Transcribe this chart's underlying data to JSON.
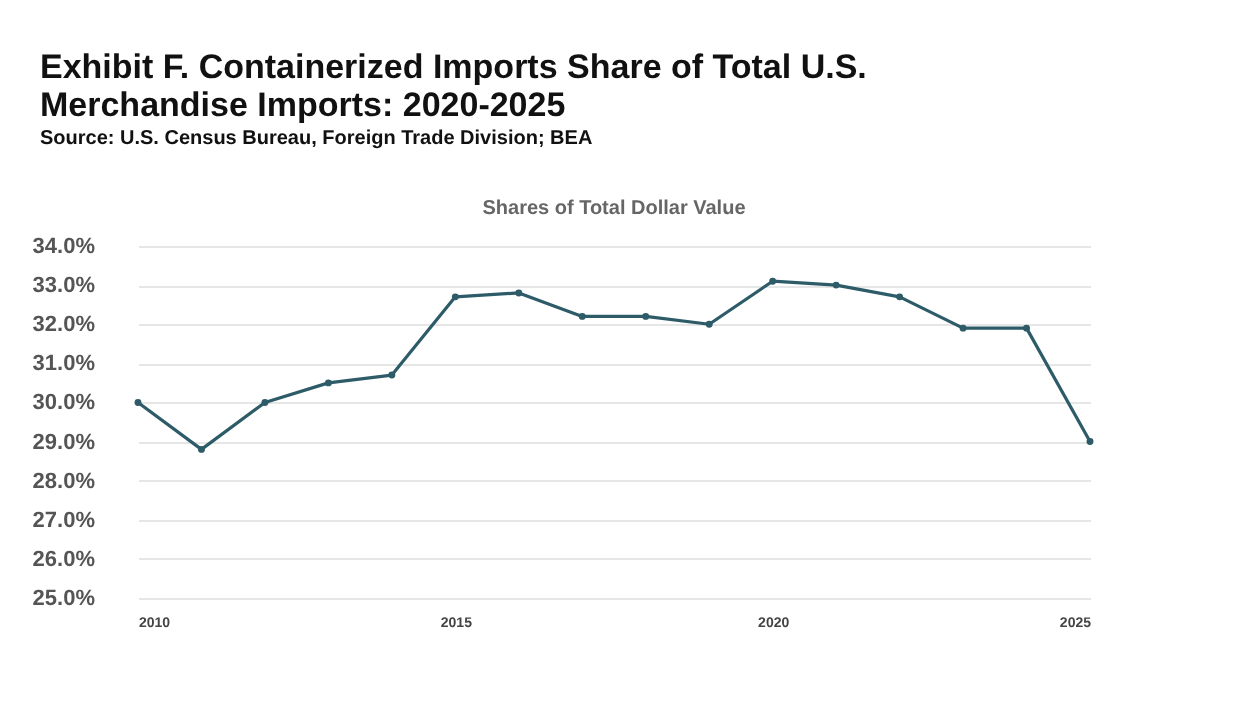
{
  "chart_data": {
    "type": "line",
    "title": "Exhibit F. Containerized Imports Share of Total U.S. Merchandise Imports: 2020-2025",
    "subtitle": "Shares of Total Dollar Value",
    "annotations": [
      "Source: U.S. Census Bureau, Foreign Trade Division; BEA"
    ],
    "x": [
      2010,
      2011,
      2012,
      2013,
      2014,
      2015,
      2016,
      2017,
      2018,
      2019,
      2020,
      2021,
      2022,
      2023,
      2024,
      2025
    ],
    "series": [
      {
        "color": "#2d5b68",
        "values": [
          30.0,
          28.8,
          30.0,
          30.5,
          30.7,
          32.7,
          32.8,
          32.2,
          32.2,
          32.0,
          33.1,
          33.0,
          32.7,
          31.9,
          31.9,
          29.0
        ]
      }
    ],
    "xlim": [
      2010,
      2025
    ],
    "xticks": [
      2010,
      2015,
      2020,
      2025
    ],
    "ylim": [
      25,
      34
    ],
    "yticks": [
      {
        "value": 25,
        "label": "25.0%"
      },
      {
        "value": 26,
        "label": "26.0%"
      },
      {
        "value": 27,
        "label": "27.0%"
      },
      {
        "value": 28,
        "label": "28.0%"
      },
      {
        "value": 29,
        "label": "29.0%"
      },
      {
        "value": 30,
        "label": "30.0%"
      },
      {
        "value": 31,
        "label": "31.0%"
      },
      {
        "value": 32,
        "label": "32.0%"
      },
      {
        "value": 33,
        "label": "33.0%"
      },
      {
        "value": 34,
        "label": "34.0%"
      }
    ],
    "grid": "y",
    "marker": "circle",
    "line_style": "solid"
  }
}
